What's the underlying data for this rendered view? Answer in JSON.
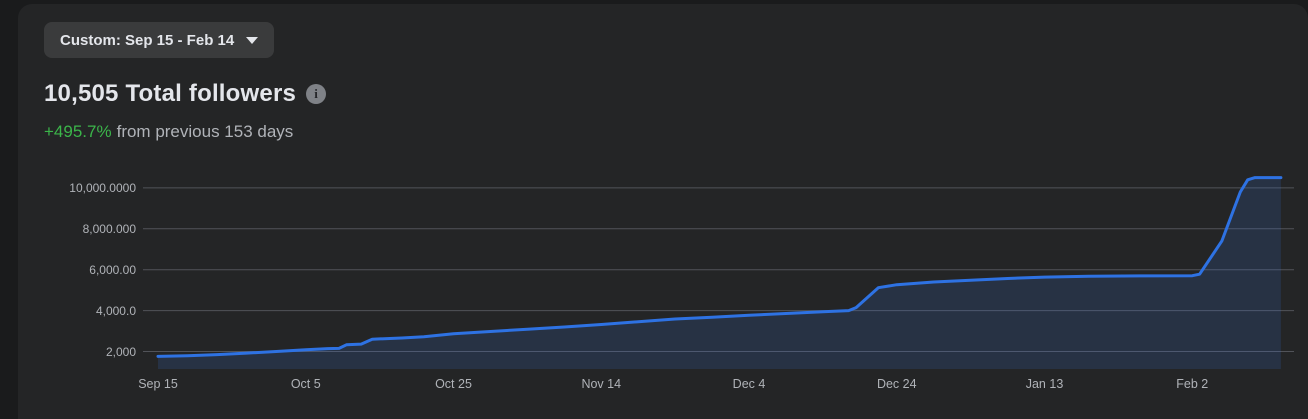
{
  "page": {
    "bg_color": "#1a1b1c",
    "card_color": "#242526",
    "text_primary": "#e4e6eb",
    "text_secondary": "#b0b3b8",
    "accent_green": "#3bb54a",
    "accent_blue": "#2e72e3"
  },
  "date_range_button": {
    "label": "Custom: Sep 15 - Feb 14"
  },
  "header": {
    "title": "10,505 Total followers",
    "growth_percent": "+495.7%",
    "growth_caption": "from previous 153 days"
  },
  "icons": {
    "info_glyph": "i",
    "chevron": "chevron-down"
  },
  "chart_data": {
    "type": "area",
    "title": "Total followers over time",
    "x_unit": "days since Sep 15",
    "xlim_days": [
      0,
      152
    ],
    "ylim": [
      1150,
      10930
    ],
    "grid": "horizontal",
    "grid_color": "#515359",
    "line_color": "#2e72e3",
    "fill_color": "rgba(53,120,229,0.16)",
    "yticks": [
      {
        "value": 2000,
        "label": "2,000"
      },
      {
        "value": 4000,
        "label": "4,000.0"
      },
      {
        "value": 6000,
        "label": "6,000.00"
      },
      {
        "value": 8000,
        "label": "8,000.000"
      },
      {
        "value": 10000,
        "label": "10,000.0000"
      }
    ],
    "xticks": [
      {
        "day": 0,
        "label": "Sep 15"
      },
      {
        "day": 20,
        "label": "Oct 5"
      },
      {
        "day": 40,
        "label": "Oct 25"
      },
      {
        "day": 60,
        "label": "Nov 14"
      },
      {
        "day": 80,
        "label": "Dec 4"
      },
      {
        "day": 100,
        "label": "Dec 24"
      },
      {
        "day": 120,
        "label": "Jan 13"
      },
      {
        "day": 140,
        "label": "Feb 2"
      }
    ],
    "series": [
      {
        "name": "Total followers",
        "points": [
          [
            0,
            1760
          ],
          [
            4,
            1790
          ],
          [
            8,
            1850
          ],
          [
            12,
            1920
          ],
          [
            16,
            2000
          ],
          [
            20,
            2090
          ],
          [
            23,
            2140
          ],
          [
            24.5,
            2150
          ],
          [
            25.5,
            2330
          ],
          [
            27.5,
            2360
          ],
          [
            29,
            2600
          ],
          [
            33,
            2660
          ],
          [
            36,
            2720
          ],
          [
            40,
            2870
          ],
          [
            45,
            2980
          ],
          [
            50,
            3090
          ],
          [
            55,
            3200
          ],
          [
            60,
            3320
          ],
          [
            65,
            3460
          ],
          [
            70,
            3590
          ],
          [
            75,
            3680
          ],
          [
            80,
            3770
          ],
          [
            85,
            3860
          ],
          [
            90,
            3940
          ],
          [
            93.5,
            4000
          ],
          [
            94.5,
            4150
          ],
          [
            97.5,
            5120
          ],
          [
            100,
            5270
          ],
          [
            105,
            5400
          ],
          [
            110,
            5490
          ],
          [
            115,
            5570
          ],
          [
            120,
            5640
          ],
          [
            126,
            5680
          ],
          [
            133,
            5700
          ],
          [
            140,
            5710
          ],
          [
            141,
            5780
          ],
          [
            144,
            7400
          ],
          [
            146.5,
            9800
          ],
          [
            147.5,
            10400
          ],
          [
            148.5,
            10505
          ],
          [
            152,
            10505
          ]
        ]
      }
    ]
  }
}
